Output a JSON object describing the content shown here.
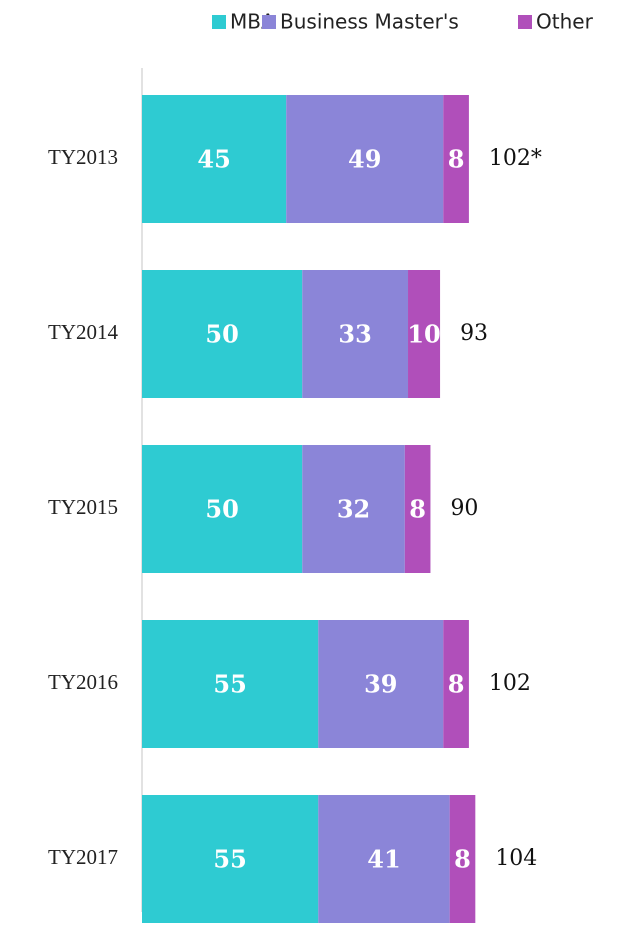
{
  "chart_data": {
    "type": "stacked-bar-horizontal",
    "categories": [
      "TY2013",
      "TY2014",
      "TY2015",
      "TY2016",
      "TY2017"
    ],
    "series": [
      {
        "name": "MBA",
        "color": "#2ecbd2",
        "values": [
          45,
          50,
          50,
          55,
          55
        ]
      },
      {
        "name": "Business Master's",
        "color": "#8b85d8",
        "values": [
          49,
          33,
          32,
          39,
          41
        ]
      },
      {
        "name": "Other",
        "color": "#b04fba",
        "values": [
          8,
          10,
          8,
          8,
          8
        ]
      }
    ],
    "totals": [
      102,
      93,
      90,
      102,
      104
    ],
    "total_labels": [
      "102*",
      "93",
      "90",
      "102",
      "104"
    ],
    "legend": "top"
  }
}
